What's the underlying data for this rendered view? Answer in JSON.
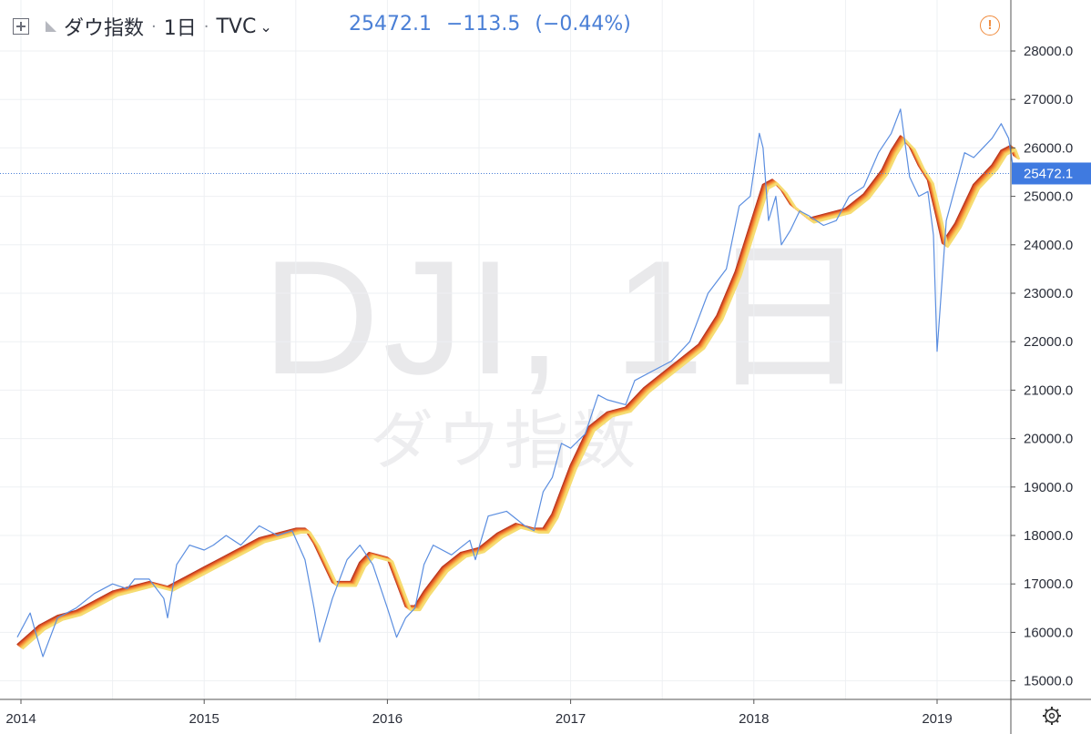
{
  "header": {
    "symbol_name": "ダウ指数",
    "interval": "1日",
    "source": "TVC",
    "chevron": "⌄",
    "last": "25472.1",
    "change": "−113.5",
    "change_pct": "(−0.44%)",
    "warning_icon": "!"
  },
  "watermark": {
    "line1": "DJI, 1日",
    "line2": "ダウ指数"
  },
  "colors": {
    "price_line": "#5b8ee0",
    "ribbon": [
      "#b8341c",
      "#d24a22",
      "#e4622a",
      "#ef7e33",
      "#f59b3e",
      "#f8b54c",
      "#f9cd5c",
      "#f6dc72"
    ],
    "accent": "#4a7fd6",
    "warning": "#f08a3b"
  },
  "chart_data": {
    "type": "line",
    "title": "DJI, 1日",
    "x_axis_labels": [
      "2014",
      "2015",
      "2016",
      "2017",
      "2018",
      "2019"
    ],
    "y_axis_labels": [
      "15000.0",
      "16000.0",
      "17000.0",
      "18000.0",
      "19000.0",
      "20000.0",
      "21000.0",
      "22000.0",
      "23000.0",
      "24000.0",
      "25000.0",
      "26000.0",
      "27000.0",
      "28000.0"
    ],
    "ylim": [
      14600,
      28500
    ],
    "xlim": [
      2013.98,
      2019.42
    ],
    "last_price_label": "25472.1",
    "last_price": 25472.1,
    "series": [
      {
        "style": "price-line",
        "x": [
          2013.98,
          2014.05,
          2014.08,
          2014.12,
          2014.2,
          2014.3,
          2014.4,
          2014.5,
          2014.58,
          2014.62,
          2014.7,
          2014.78,
          2014.8,
          2014.85,
          2014.92,
          2015.0,
          2015.05,
          2015.12,
          2015.2,
          2015.3,
          2015.4,
          2015.48,
          2015.55,
          2015.6,
          2015.63,
          2015.7,
          2015.78,
          2015.85,
          2015.92,
          2016.0,
          2016.05,
          2016.1,
          2016.15,
          2016.2,
          2016.25,
          2016.35,
          2016.45,
          2016.48,
          2016.55,
          2016.65,
          2016.75,
          2016.8,
          2016.85,
          2016.9,
          2016.95,
          2017.0,
          2017.08,
          2017.15,
          2017.2,
          2017.3,
          2017.35,
          2017.45,
          2017.55,
          2017.65,
          2017.75,
          2017.85,
          2017.92,
          2017.98,
          2018.03,
          2018.05,
          2018.08,
          2018.12,
          2018.15,
          2018.2,
          2018.25,
          2018.3,
          2018.38,
          2018.45,
          2018.52,
          2018.6,
          2018.68,
          2018.75,
          2018.8,
          2018.85,
          2018.9,
          2018.95,
          2018.98,
          2019.0,
          2019.05,
          2019.1,
          2019.15,
          2019.2,
          2019.25,
          2019.3,
          2019.35,
          2019.39,
          2019.42
        ],
        "y": [
          15900,
          16400,
          16000,
          15500,
          16300,
          16500,
          16800,
          17000,
          16900,
          17100,
          17100,
          16700,
          16300,
          17400,
          17800,
          17700,
          17800,
          18000,
          17800,
          18200,
          18000,
          18100,
          17500,
          16500,
          15800,
          16700,
          17500,
          17800,
          17400,
          16500,
          15900,
          16300,
          16500,
          17400,
          17800,
          17600,
          17900,
          17500,
          18400,
          18500,
          18200,
          18100,
          18900,
          19200,
          19900,
          19800,
          20100,
          20900,
          20800,
          20700,
          21200,
          21400,
          21600,
          22000,
          23000,
          23500,
          24800,
          25000,
          26300,
          26000,
          24500,
          25000,
          24000,
          24300,
          24700,
          24600,
          24400,
          24500,
          25000,
          25200,
          25900,
          26300,
          26800,
          25400,
          25000,
          25100,
          24200,
          21800,
          24500,
          25200,
          25900,
          25800,
          26000,
          26200,
          26500,
          26200,
          25472
        ]
      },
      {
        "style": "ribbon",
        "x": [
          2013.98,
          2014.1,
          2014.2,
          2014.3,
          2014.4,
          2014.5,
          2014.6,
          2014.7,
          2014.8,
          2014.9,
          2015.0,
          2015.1,
          2015.2,
          2015.3,
          2015.4,
          2015.5,
          2015.55,
          2015.6,
          2015.7,
          2015.8,
          2015.85,
          2015.9,
          2016.0,
          2016.05,
          2016.1,
          2016.15,
          2016.2,
          2016.3,
          2016.4,
          2016.5,
          2016.6,
          2016.7,
          2016.8,
          2016.85,
          2016.9,
          2017.0,
          2017.1,
          2017.2,
          2017.3,
          2017.4,
          2017.5,
          2017.6,
          2017.7,
          2017.8,
          2017.9,
          2018.0,
          2018.05,
          2018.1,
          2018.15,
          2018.2,
          2018.3,
          2018.4,
          2018.5,
          2018.6,
          2018.7,
          2018.75,
          2018.8,
          2018.85,
          2018.9,
          2018.95,
          2019.0,
          2019.03,
          2019.1,
          2019.2,
          2019.3,
          2019.35,
          2019.4,
          2019.42
        ],
        "y": [
          15700,
          16100,
          16300,
          16400,
          16600,
          16800,
          16900,
          17000,
          16900,
          17100,
          17300,
          17500,
          17700,
          17900,
          18000,
          18100,
          18100,
          17800,
          17000,
          17000,
          17400,
          17600,
          17500,
          17000,
          16500,
          16500,
          16800,
          17300,
          17600,
          17700,
          18000,
          18200,
          18100,
          18100,
          18400,
          19400,
          20200,
          20500,
          20600,
          21000,
          21300,
          21600,
          21900,
          22500,
          23400,
          24600,
          25200,
          25300,
          25100,
          24800,
          24500,
          24600,
          24700,
          25000,
          25500,
          25900,
          26200,
          26000,
          25600,
          25300,
          24500,
          24000,
          24400,
          25200,
          25600,
          25900,
          26000,
          25800
        ]
      }
    ]
  }
}
